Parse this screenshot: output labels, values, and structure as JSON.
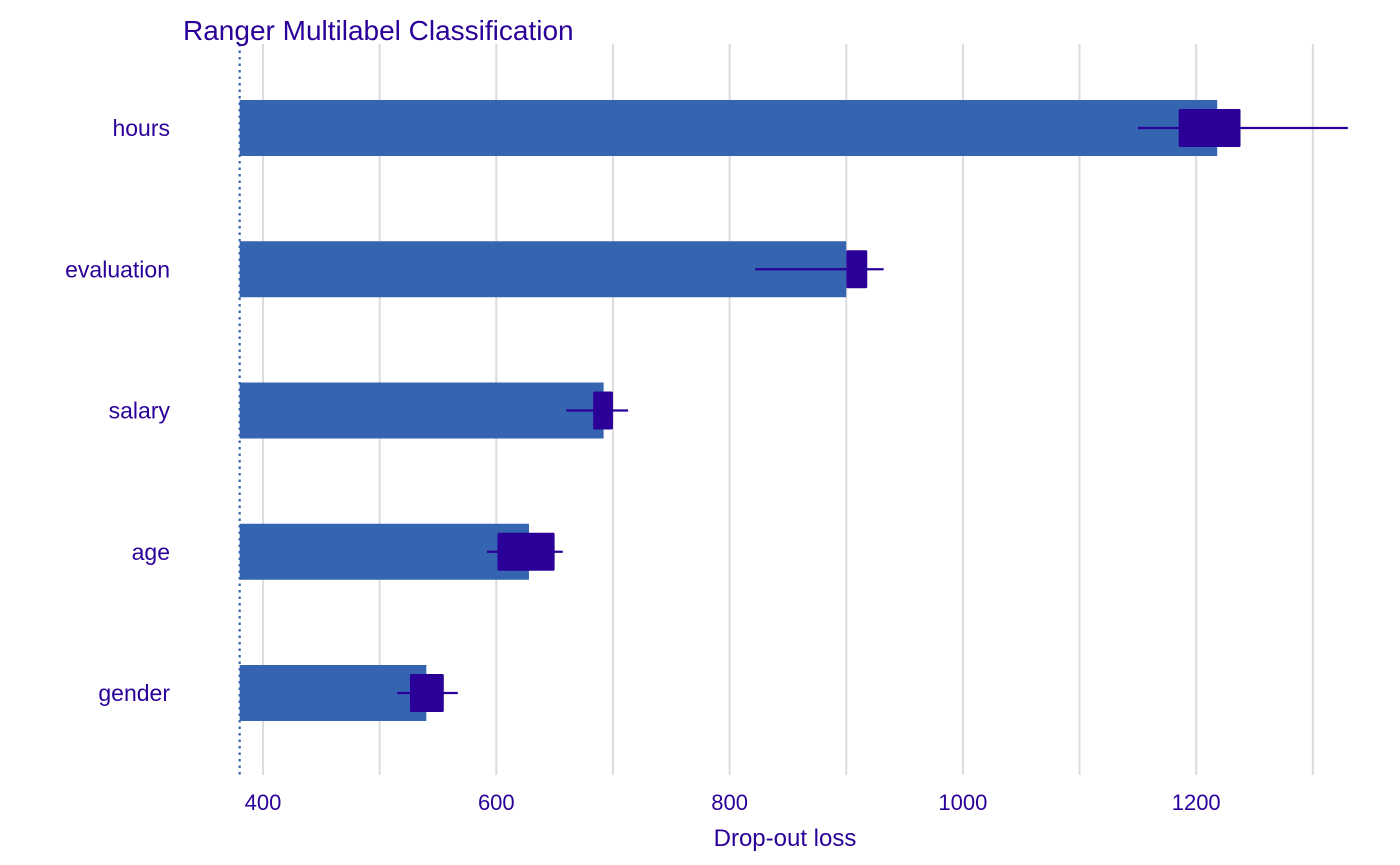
{
  "colors": {
    "text": "#2b0099",
    "bar": "#3564b0",
    "box": "#2b0099",
    "whisker": "#2b0099",
    "grid": "#dcdcdc",
    "baseline": "#3564b0",
    "background": "#ffffff"
  },
  "chart_data": {
    "type": "bar",
    "orientation": "horizontal",
    "title": "Ranger Multilabel Classification",
    "xlabel": "Drop-out loss",
    "ylabel": "",
    "xlim": [
      380,
      1320
    ],
    "baseline": 380,
    "x_ticks": [
      400,
      600,
      800,
      1000,
      1200
    ],
    "x_ticks_labels": [
      "400",
      "600",
      "800",
      "1000",
      "1200"
    ],
    "minor_grid": [
      500,
      700,
      900,
      1100,
      1300
    ],
    "grid": true,
    "legend": "none",
    "categories": [
      "hours",
      "evaluation",
      "salary",
      "age",
      "gender"
    ],
    "values": [
      1218,
      900,
      692,
      628,
      540
    ],
    "boxes": [
      {
        "category": "hours",
        "q1": 1185,
        "q3": 1238,
        "min": 1150,
        "max": 1330
      },
      {
        "category": "evaluation",
        "q1": 900,
        "q3": 918,
        "min": 822,
        "max": 932
      },
      {
        "category": "salary",
        "q1": 683,
        "q3": 700,
        "min": 660,
        "max": 713
      },
      {
        "category": "age",
        "q1": 601,
        "q3": 650,
        "min": 592,
        "max": 657
      },
      {
        "category": "gender",
        "q1": 526,
        "q3": 555,
        "min": 515,
        "max": 567
      }
    ]
  }
}
